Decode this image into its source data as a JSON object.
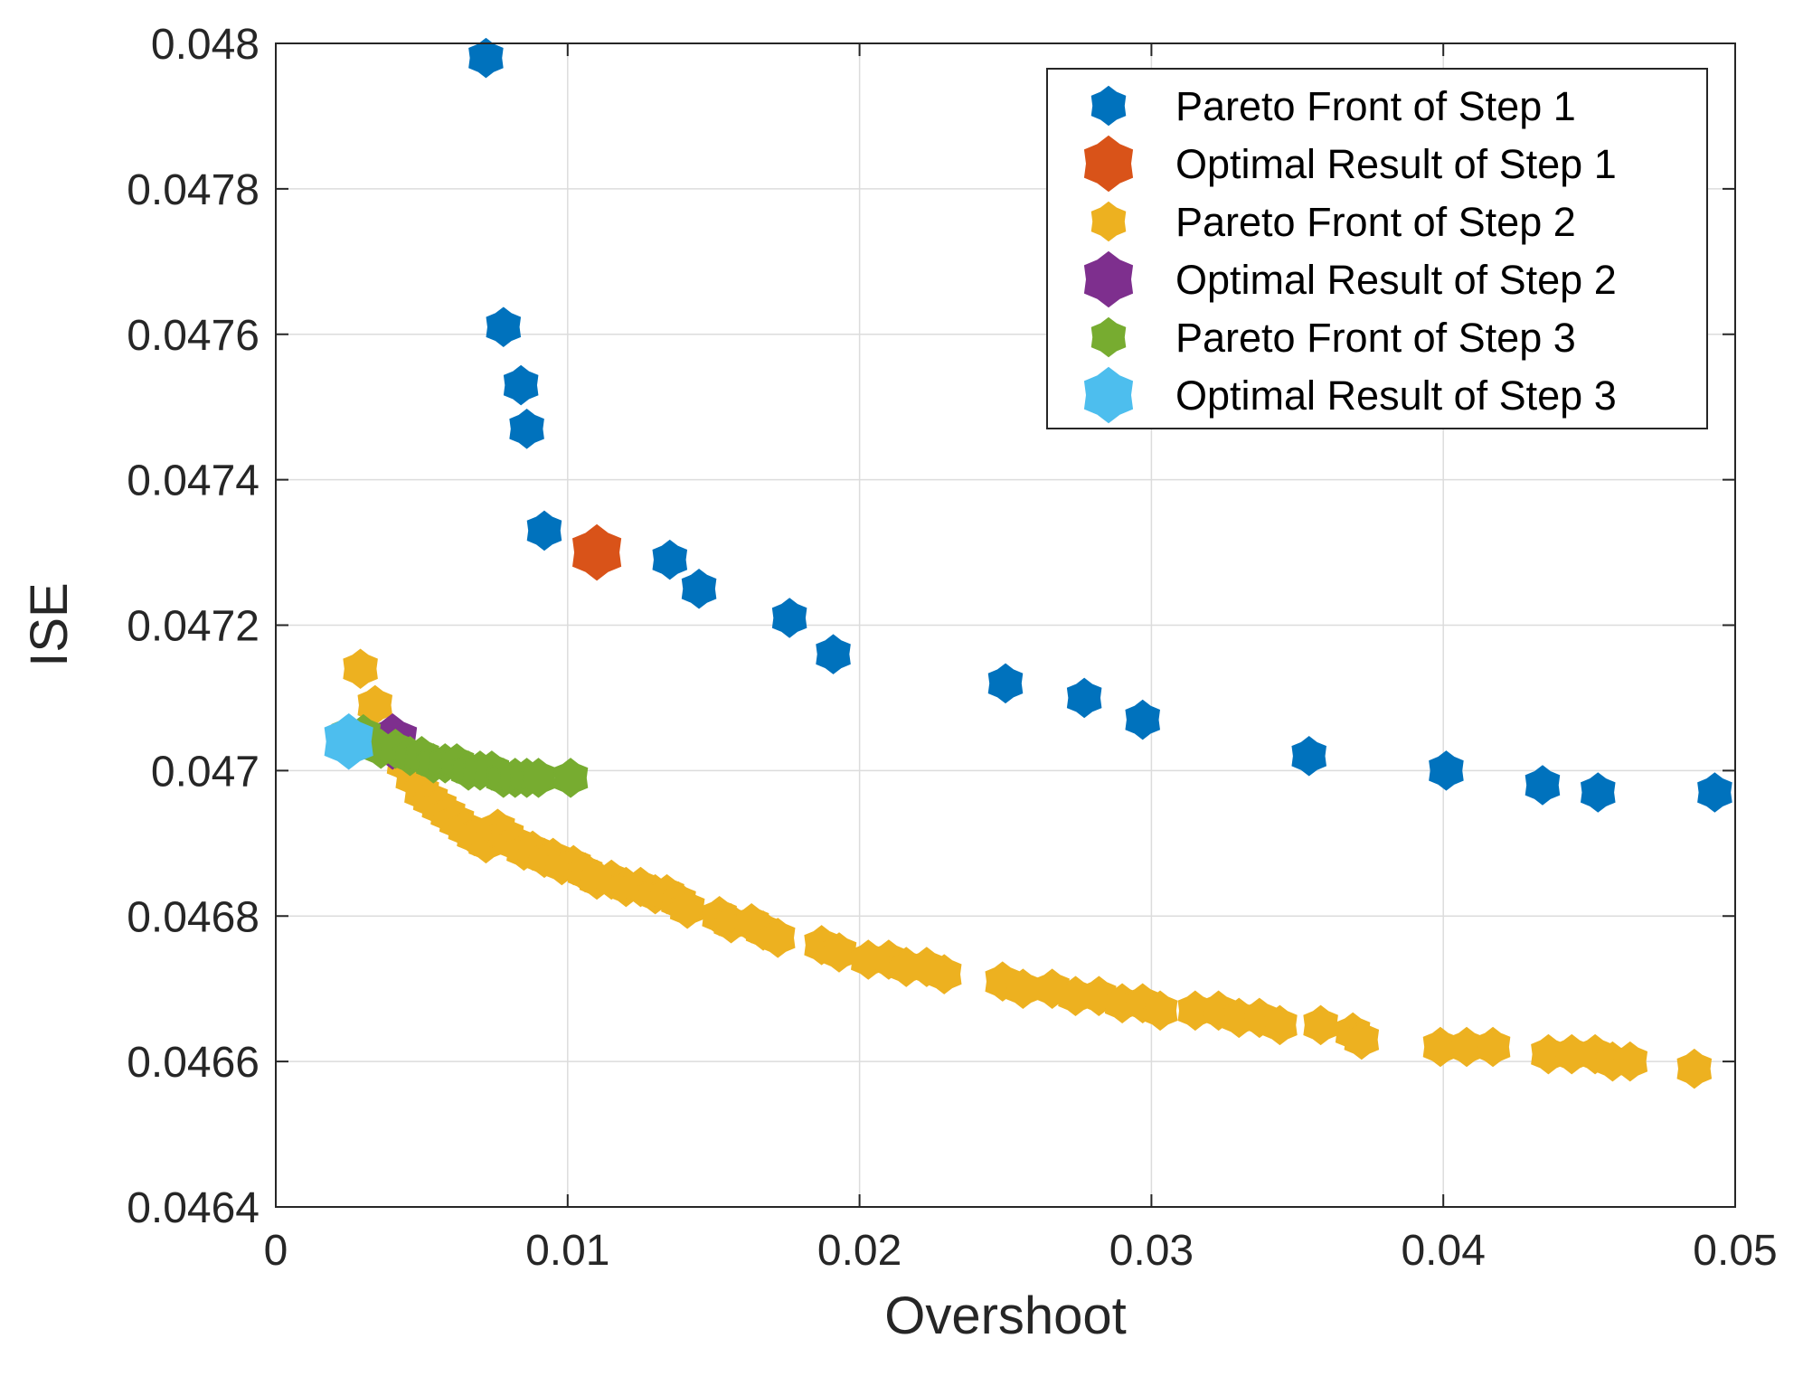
{
  "chart_data": {
    "type": "scatter",
    "xlabel": "Overshoot",
    "ylabel": "ISE",
    "xlim": [
      0,
      0.05
    ],
    "ylim": [
      0.0464,
      0.048
    ],
    "xticks": [
      0,
      0.01,
      0.02,
      0.03,
      0.04,
      0.05
    ],
    "xtick_labels": [
      "0",
      "0.01",
      "0.02",
      "0.03",
      "0.04",
      "0.05"
    ],
    "yticks": [
      0.0464,
      0.0466,
      0.0468,
      0.047,
      0.0472,
      0.0474,
      0.0476,
      0.0478,
      0.048
    ],
    "ytick_labels": [
      "0.0464",
      "0.0466",
      "0.0468",
      "0.047",
      "0.0472",
      "0.0474",
      "0.0476",
      "0.0478",
      "0.048"
    ],
    "grid": true,
    "legend_position": "top-right",
    "series": [
      {
        "name": "Pareto Front of Step 1",
        "color": "#0072BD",
        "marker": "hexagram",
        "size": "small",
        "points": [
          [
            0.0072,
            0.04798
          ],
          [
            0.0078,
            0.04761
          ],
          [
            0.0084,
            0.04753
          ],
          [
            0.0086,
            0.04747
          ],
          [
            0.0092,
            0.04733
          ],
          [
            0.0135,
            0.04729
          ],
          [
            0.0145,
            0.04725
          ],
          [
            0.0176,
            0.04721
          ],
          [
            0.0191,
            0.04716
          ],
          [
            0.025,
            0.04712
          ],
          [
            0.0277,
            0.0471
          ],
          [
            0.0297,
            0.04707
          ],
          [
            0.0354,
            0.04702
          ],
          [
            0.0401,
            0.047
          ],
          [
            0.0434,
            0.04698
          ],
          [
            0.0453,
            0.04697
          ],
          [
            0.0493,
            0.04697
          ]
        ]
      },
      {
        "name": "Optimal Result of Step 1",
        "color": "#D95319",
        "marker": "hexagram",
        "size": "large",
        "points": [
          [
            0.011,
            0.0473
          ]
        ]
      },
      {
        "name": "Pareto Front of Step 2",
        "color": "#EDB120",
        "marker": "hexagram",
        "size": "small",
        "points": [
          [
            0.0029,
            0.04714
          ],
          [
            0.0034,
            0.04709
          ],
          [
            0.0041,
            0.04703
          ],
          [
            0.0044,
            0.04701
          ],
          [
            0.0047,
            0.04699
          ],
          [
            0.005,
            0.04697
          ],
          [
            0.0053,
            0.04696
          ],
          [
            0.0056,
            0.04695
          ],
          [
            0.0059,
            0.04694
          ],
          [
            0.0062,
            0.04693
          ],
          [
            0.0065,
            0.04692
          ],
          [
            0.0068,
            0.04691
          ],
          [
            0.0072,
            0.0469
          ],
          [
            0.0076,
            0.04692
          ],
          [
            0.0079,
            0.04691
          ],
          [
            0.0082,
            0.0469
          ],
          [
            0.0085,
            0.04689
          ],
          [
            0.0088,
            0.04689
          ],
          [
            0.0092,
            0.04688
          ],
          [
            0.0095,
            0.04688
          ],
          [
            0.0098,
            0.04687
          ],
          [
            0.0102,
            0.04687
          ],
          [
            0.0106,
            0.04686
          ],
          [
            0.011,
            0.04685
          ],
          [
            0.0115,
            0.04685
          ],
          [
            0.012,
            0.04684
          ],
          [
            0.0125,
            0.04684
          ],
          [
            0.013,
            0.04683
          ],
          [
            0.0134,
            0.04683
          ],
          [
            0.0138,
            0.04682
          ],
          [
            0.0141,
            0.04681
          ],
          [
            0.0152,
            0.0468
          ],
          [
            0.0156,
            0.04679
          ],
          [
            0.0163,
            0.04679
          ],
          [
            0.0167,
            0.04678
          ],
          [
            0.0172,
            0.04677
          ],
          [
            0.0187,
            0.04676
          ],
          [
            0.0193,
            0.04675
          ],
          [
            0.0203,
            0.04674
          ],
          [
            0.021,
            0.04674
          ],
          [
            0.0216,
            0.04673
          ],
          [
            0.0223,
            0.04673
          ],
          [
            0.0229,
            0.04672
          ],
          [
            0.0249,
            0.04671
          ],
          [
            0.0256,
            0.0467
          ],
          [
            0.0266,
            0.0467
          ],
          [
            0.0274,
            0.04669
          ],
          [
            0.0282,
            0.04669
          ],
          [
            0.029,
            0.04668
          ],
          [
            0.0297,
            0.04668
          ],
          [
            0.0303,
            0.04667
          ],
          [
            0.0315,
            0.04667
          ],
          [
            0.0323,
            0.04667
          ],
          [
            0.033,
            0.04666
          ],
          [
            0.0337,
            0.04666
          ],
          [
            0.0344,
            0.04665
          ],
          [
            0.0358,
            0.04665
          ],
          [
            0.0369,
            0.04664
          ],
          [
            0.0372,
            0.04663
          ],
          [
            0.0399,
            0.04662
          ],
          [
            0.0408,
            0.04662
          ],
          [
            0.0417,
            0.04662
          ],
          [
            0.0436,
            0.04661
          ],
          [
            0.0444,
            0.04661
          ],
          [
            0.0452,
            0.04661
          ],
          [
            0.0458,
            0.0466
          ],
          [
            0.0464,
            0.0466
          ],
          [
            0.0486,
            0.04659
          ]
        ]
      },
      {
        "name": "Optimal Result of Step 2",
        "color": "#7E2F8E",
        "marker": "hexagram",
        "size": "large",
        "points": [
          [
            0.004,
            0.04704
          ]
        ]
      },
      {
        "name": "Pareto Front of Step 3",
        "color": "#77AC30",
        "marker": "hexagram",
        "size": "small",
        "points": [
          [
            0.0025,
            0.04705
          ],
          [
            0.003,
            0.04705
          ],
          [
            0.0036,
            0.04703
          ],
          [
            0.0041,
            0.04703
          ],
          [
            0.0046,
            0.04702
          ],
          [
            0.005,
            0.04702
          ],
          [
            0.0054,
            0.04701
          ],
          [
            0.0058,
            0.04701
          ],
          [
            0.0062,
            0.04701
          ],
          [
            0.0066,
            0.047
          ],
          [
            0.007,
            0.047
          ],
          [
            0.0074,
            0.047
          ],
          [
            0.0078,
            0.04699
          ],
          [
            0.0082,
            0.04699
          ],
          [
            0.0086,
            0.04699
          ],
          [
            0.009,
            0.04699
          ],
          [
            0.0101,
            0.04699
          ]
        ]
      },
      {
        "name": "Optimal Result of Step 3",
        "color": "#4DBEEE",
        "marker": "hexagram",
        "size": "large",
        "points": [
          [
            0.0025,
            0.04704
          ]
        ]
      }
    ]
  }
}
